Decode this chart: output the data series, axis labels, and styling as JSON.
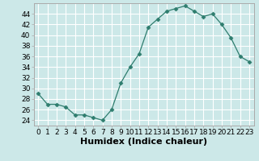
{
  "x": [
    0,
    1,
    2,
    3,
    4,
    5,
    6,
    7,
    8,
    9,
    10,
    11,
    12,
    13,
    14,
    15,
    16,
    17,
    18,
    19,
    20,
    21,
    22,
    23
  ],
  "y": [
    29,
    27,
    27,
    26.5,
    25,
    25,
    24.5,
    24,
    26,
    31,
    34,
    36.5,
    41.5,
    43,
    44.5,
    45,
    45.5,
    44.5,
    43.5,
    44,
    42,
    39.5,
    36,
    35
  ],
  "line_color": "#2e7d6e",
  "marker": "D",
  "marker_size": 2.5,
  "bg_color": "#cce8e8",
  "grid_color": "#ffffff",
  "xlabel": "Humidex (Indice chaleur)",
  "ylim": [
    23,
    46
  ],
  "xlim": [
    -0.5,
    23.5
  ],
  "yticks": [
    24,
    26,
    28,
    30,
    32,
    34,
    36,
    38,
    40,
    42,
    44
  ],
  "xticks": [
    0,
    1,
    2,
    3,
    4,
    5,
    6,
    7,
    8,
    9,
    10,
    11,
    12,
    13,
    14,
    15,
    16,
    17,
    18,
    19,
    20,
    21,
    22,
    23
  ],
  "xtick_labels": [
    "0",
    "1",
    "2",
    "3",
    "4",
    "5",
    "6",
    "7",
    "8",
    "9",
    "10",
    "11",
    "12",
    "13",
    "14",
    "15",
    "16",
    "17",
    "18",
    "19",
    "20",
    "21",
    "22",
    "23"
  ],
  "tick_fontsize": 6.5,
  "xlabel_fontsize": 8,
  "spine_color": "#aaaaaa"
}
